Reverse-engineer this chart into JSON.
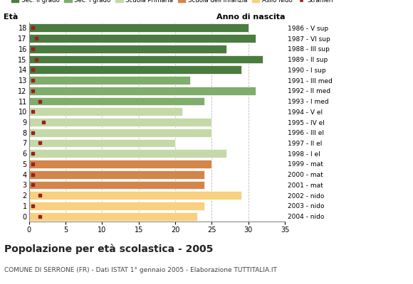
{
  "ages": [
    18,
    17,
    16,
    15,
    14,
    13,
    12,
    11,
    10,
    9,
    8,
    7,
    6,
    5,
    4,
    3,
    2,
    1,
    0
  ],
  "anno_nascita": [
    "1986 - V sup",
    "1987 - VI sup",
    "1988 - III sup",
    "1989 - II sup",
    "1990 - I sup",
    "1991 - III med",
    "1992 - II med",
    "1993 - I med",
    "1994 - V el",
    "1995 - IV el",
    "1996 - III el",
    "1997 - II el",
    "1998 - I el",
    "1999 - mat",
    "2000 - mat",
    "2001 - mat",
    "2002 - nido",
    "2003 - nido",
    "2004 - nido"
  ],
  "bar_values": [
    30,
    31,
    27,
    32,
    29,
    22,
    31,
    24,
    21,
    25,
    25,
    20,
    27,
    25,
    24,
    24,
    29,
    24,
    23
  ],
  "stranieri_values": [
    0.5,
    1.0,
    0.5,
    1.0,
    0.5,
    0.5,
    0.5,
    1.5,
    0.5,
    2.0,
    0.5,
    1.5,
    0.5,
    0.5,
    0.5,
    0.5,
    1.5,
    0.5,
    1.5
  ],
  "color_sec2": "#4a7c3f",
  "color_sec1": "#7fad6b",
  "color_prim": "#c5d9a8",
  "color_inf": "#d4854a",
  "color_nido": "#f7d080",
  "color_stranieri": "#9b2020",
  "age_colors": {
    "18": "#4a7c3f",
    "17": "#4a7c3f",
    "16": "#4a7c3f",
    "15": "#4a7c3f",
    "14": "#4a7c3f",
    "13": "#7fad6b",
    "12": "#7fad6b",
    "11": "#7fad6b",
    "10": "#c5d9a8",
    "9": "#c5d9a8",
    "8": "#c5d9a8",
    "7": "#c5d9a8",
    "6": "#c5d9a8",
    "5": "#d4854a",
    "4": "#d4854a",
    "3": "#d4854a",
    "2": "#f7d080",
    "1": "#f7d080",
    "0": "#f7d080"
  },
  "title": "Popolazione per età scolastica - 2005",
  "subtitle": "COMUNE DI SERRONE (FR) - Dati ISTAT 1° gennaio 2005 - Elaborazione TUTTITALIA.IT",
  "eta_label": "Età",
  "anno_label": "Anno di nascita",
  "xlim": [
    0,
    35
  ],
  "bar_height": 0.8,
  "background_color": "#ffffff",
  "grid_color": "#bbbbbb",
  "legend_labels": [
    "Sec. II grado",
    "Sec. I grado",
    "Scuola Primaria",
    "Scuola dell'Infanzia",
    "Asilo Nido",
    "Stranieri"
  ],
  "legend_colors": [
    "#4a7c3f",
    "#7fad6b",
    "#c5d9a8",
    "#d4854a",
    "#f7d080",
    "#9b2020"
  ]
}
